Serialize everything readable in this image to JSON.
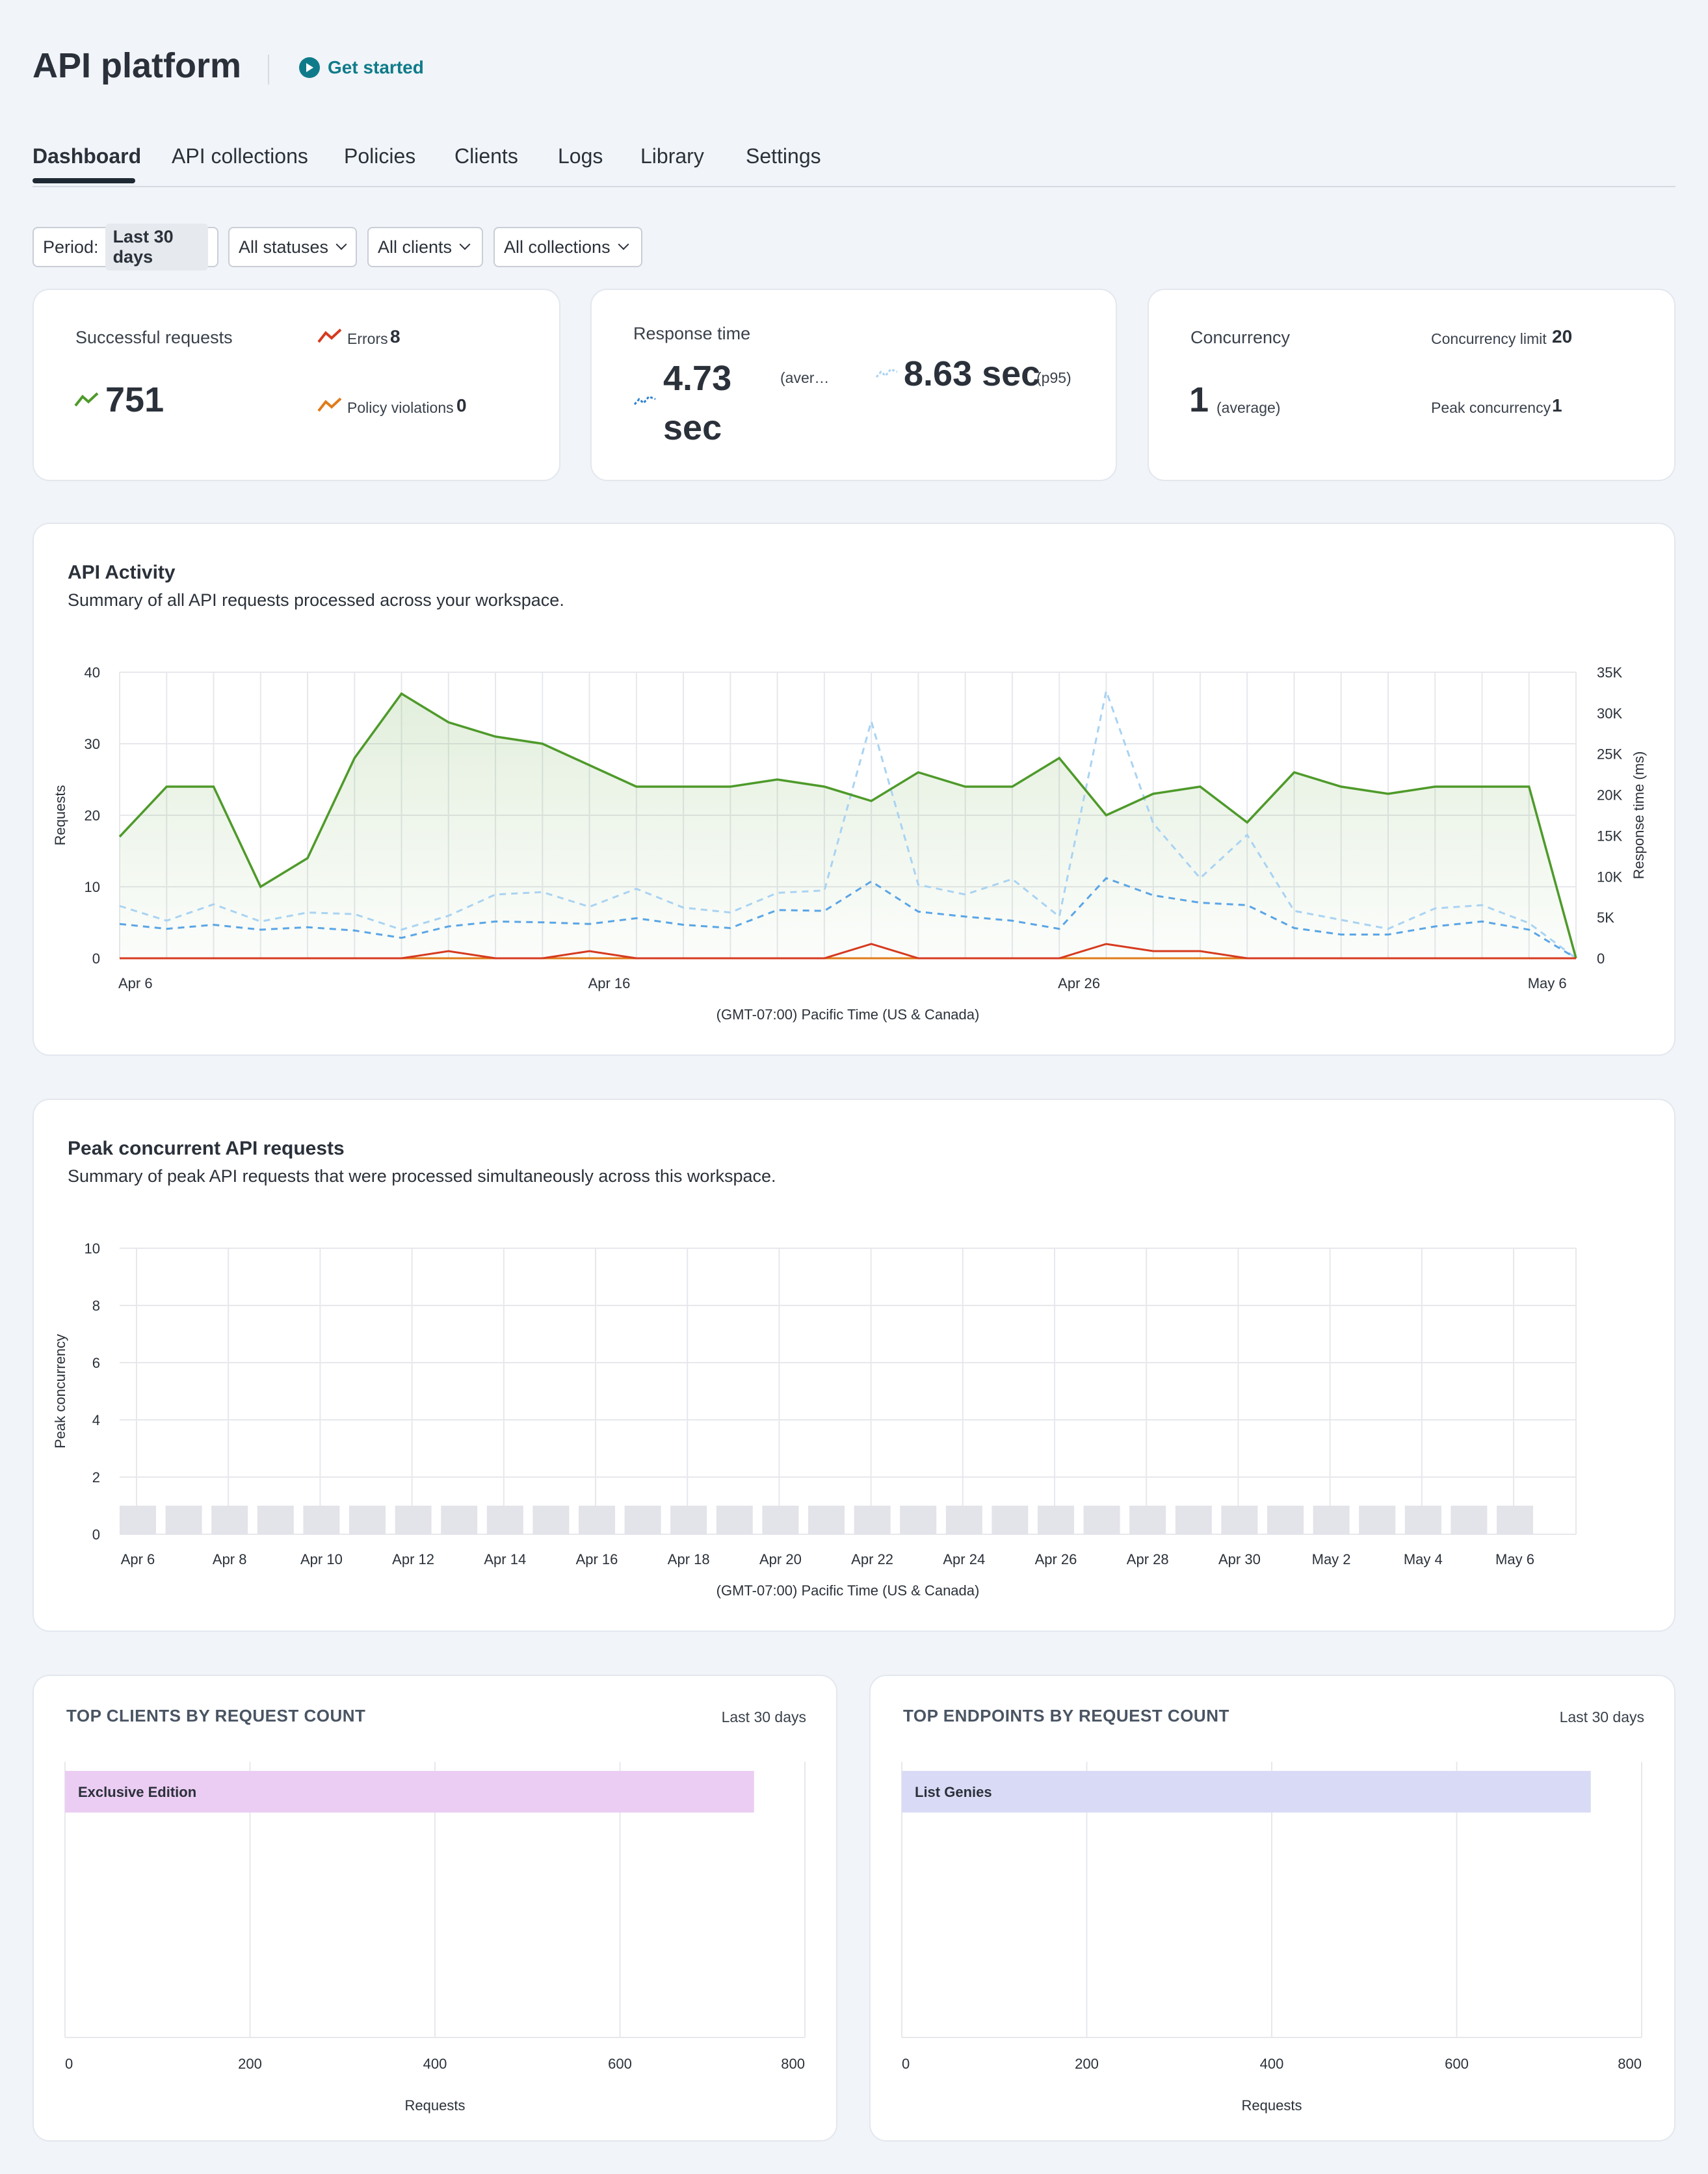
{
  "header": {
    "title": "API platform",
    "get_started": "Get started"
  },
  "tabs": [
    "Dashboard",
    "API collections",
    "Policies",
    "Clients",
    "Logs",
    "Library",
    "Settings"
  ],
  "filters": {
    "period_label": "Period:",
    "period_value": "Last 30 days",
    "statuses": "All statuses",
    "clients": "All clients",
    "collections": "All collections"
  },
  "stats": {
    "successful_label": "Successful requests",
    "successful_value": "751",
    "errors_label": "Errors",
    "errors_value": "8",
    "violations_label": "Policy violations",
    "violations_value": "0",
    "response_label": "Response time",
    "response_avg_line1": "4.73",
    "response_avg_line2": "sec",
    "response_avg_suffix": "(aver…",
    "response_p95": "8.63 sec",
    "response_p95_suffix": "(p95)",
    "concurrency_label": "Concurrency",
    "concurrency_value": "1",
    "concurrency_suffix": "(average)",
    "limit_label": "Concurrency limit",
    "limit_value": "20",
    "peak_label": "Peak concurrency",
    "peak_value": "1"
  },
  "colors": {
    "success": "#4e9a2a",
    "error": "#d63a1f",
    "violation": "#e07b1a",
    "avg": "#5aa5e6",
    "p95": "#a9d3f2",
    "bar": "#e3e3ea",
    "clients_bar": "#ebcdf3",
    "endpoints_bar": "#d9dbf6"
  },
  "activity": {
    "title": "API Activity",
    "subtitle": "Summary of all API requests processed across your workspace.",
    "timezone": "(GMT-07:00) Pacific Time (US & Canada)"
  },
  "peak": {
    "title": "Peak concurrent API requests",
    "subtitle": "Summary of peak API requests that were processed simultaneously across this workspace.",
    "timezone": "(GMT-07:00) Pacific Time (US & Canada)"
  },
  "top_clients": {
    "title": "TOP CLIENTS BY REQUEST COUNT",
    "range": "Last 30 days",
    "xlabel": "Requests"
  },
  "top_endpoints": {
    "title": "TOP ENDPOINTS BY REQUEST COUNT",
    "range": "Last 30 days",
    "xlabel": "Requests"
  },
  "chart_data": [
    {
      "type": "line",
      "title": "API Activity",
      "xlabel": "(GMT-07:00) Pacific Time (US & Canada)",
      "ylabel": "Requests",
      "y2label": "Response time (ms)",
      "ylim": [
        0,
        40
      ],
      "y2lim": [
        0,
        35000
      ],
      "yticks": [
        "0",
        "10",
        "20",
        "30",
        "40"
      ],
      "y2ticks": [
        "0",
        "5K",
        "10K",
        "15K",
        "20K",
        "25K",
        "30K",
        "35K"
      ],
      "x": [
        "Apr 6",
        "Apr 7",
        "Apr 8",
        "Apr 9",
        "Apr 10",
        "Apr 11",
        "Apr 12",
        "Apr 13",
        "Apr 14",
        "Apr 15",
        "Apr 16",
        "Apr 17",
        "Apr 18",
        "Apr 19",
        "Apr 20",
        "Apr 21",
        "Apr 22",
        "Apr 23",
        "Apr 24",
        "Apr 25",
        "Apr 26",
        "Apr 27",
        "Apr 28",
        "Apr 29",
        "Apr 30",
        "May 1",
        "May 2",
        "May 3",
        "May 4",
        "May 5",
        "May 6",
        "May 7"
      ],
      "xtick_labels": [
        "Apr 6",
        "Apr 16",
        "Apr 26",
        "May 6"
      ],
      "series": [
        {
          "values": [
            17,
            24,
            24,
            10,
            14,
            28,
            37,
            33,
            31,
            30,
            27,
            24,
            24,
            24,
            25,
            24,
            22,
            26,
            24,
            24,
            28,
            20,
            23,
            24,
            19,
            26,
            24,
            23,
            24,
            24,
            24,
            0
          ]
        },
        {
          "values": [
            0,
            0,
            0,
            0,
            0,
            0,
            0,
            1,
            0,
            0,
            1,
            0,
            0,
            0,
            0,
            0,
            2,
            0,
            0,
            0,
            0,
            2,
            1,
            1,
            0,
            0,
            0,
            0,
            0,
            0,
            0,
            0
          ]
        },
        {
          "values": [
            0,
            0,
            0,
            0,
            0,
            0,
            0,
            0,
            0,
            0,
            0,
            0,
            0,
            0,
            0,
            0,
            0,
            0,
            0,
            0,
            0,
            0,
            0,
            0,
            0,
            0,
            0,
            0,
            0,
            0,
            0,
            0
          ]
        },
        {
          "values": [
            4200,
            3600,
            4100,
            3500,
            3800,
            3400,
            2500,
            3900,
            4500,
            4400,
            4200,
            4900,
            4100,
            3700,
            5900,
            5800,
            9400,
            5700,
            5100,
            4600,
            3600,
            9800,
            7700,
            6800,
            6500,
            3700,
            2900,
            2900,
            3900,
            4500,
            3500,
            0
          ]
        },
        {
          "values": [
            6400,
            4600,
            6600,
            4500,
            5600,
            5400,
            3500,
            5200,
            7800,
            8100,
            6300,
            8500,
            6200,
            5600,
            8000,
            8300,
            29000,
            9000,
            7800,
            9700,
            5100,
            32700,
            16500,
            9800,
            15100,
            5800,
            4700,
            3600,
            6100,
            6500,
            4300,
            0
          ]
        }
      ]
    },
    {
      "type": "bar",
      "title": "Peak concurrent API requests",
      "xlabel": "(GMT-07:00) Pacific Time (US & Canada)",
      "ylabel": "Peak concurrency",
      "ylim": [
        0,
        10
      ],
      "yticks": [
        "0",
        "2",
        "4",
        "6",
        "8",
        "10"
      ],
      "categories": [
        "Apr 6",
        "Apr 7",
        "Apr 8",
        "Apr 9",
        "Apr 10",
        "Apr 11",
        "Apr 12",
        "Apr 13",
        "Apr 14",
        "Apr 15",
        "Apr 16",
        "Apr 17",
        "Apr 18",
        "Apr 19",
        "Apr 20",
        "Apr 21",
        "Apr 22",
        "Apr 23",
        "Apr 24",
        "Apr 25",
        "Apr 26",
        "Apr 27",
        "Apr 28",
        "Apr 29",
        "Apr 30",
        "May 1",
        "May 2",
        "May 3",
        "May 4",
        "May 5",
        "May 6"
      ],
      "values": [
        1,
        1,
        1,
        1,
        1,
        1,
        1,
        1,
        1,
        1,
        1,
        1,
        1,
        1,
        1,
        1,
        1,
        1,
        1,
        1,
        1,
        1,
        1,
        1,
        1,
        1,
        1,
        1,
        1,
        1,
        1
      ],
      "xtick_labels": [
        "Apr 6",
        "Apr 8",
        "Apr 10",
        "Apr 12",
        "Apr 14",
        "Apr 16",
        "Apr 18",
        "Apr 20",
        "Apr 22",
        "Apr 24",
        "Apr 26",
        "Apr 28",
        "Apr 30",
        "May 2",
        "May 4",
        "May 6"
      ]
    },
    {
      "type": "bar",
      "orientation": "horizontal",
      "title": "TOP CLIENTS BY REQUEST COUNT",
      "xlabel": "Requests",
      "xlim": [
        0,
        800
      ],
      "xticks": [
        "0",
        "200",
        "400",
        "600",
        "800"
      ],
      "categories": [
        "Exclusive Edition"
      ],
      "values": [
        745
      ]
    },
    {
      "type": "bar",
      "orientation": "horizontal",
      "title": "TOP ENDPOINTS BY REQUEST COUNT",
      "xlabel": "Requests",
      "xlim": [
        0,
        800
      ],
      "xticks": [
        "0",
        "200",
        "400",
        "600",
        "800"
      ],
      "categories": [
        "List Genies"
      ],
      "values": [
        745
      ]
    }
  ]
}
